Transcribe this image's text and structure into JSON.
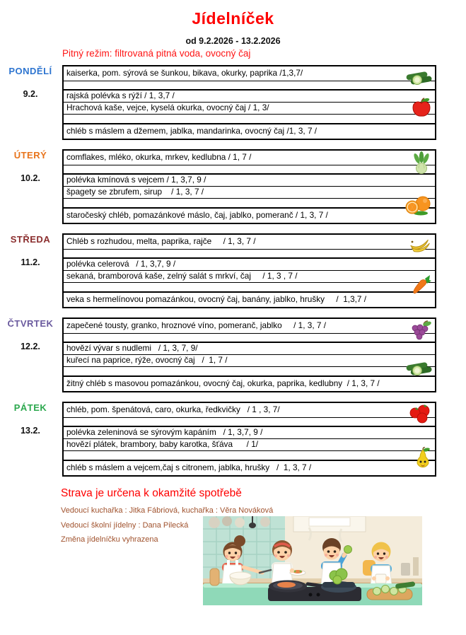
{
  "header": {
    "title": "Jídelníček",
    "date_range": "od 9.2.2026 - 13.2.2026",
    "drink_note": "Pitný režim: filtrovaná pitná voda, ovocný čaj"
  },
  "days": [
    {
      "label": "PONDĚLÍ",
      "date": "9.2.",
      "color": "#2e75d0",
      "rows": [
        "kaiserka, pom. sýrová se šunkou, bikava, okurky, paprika /1,3,7/",
        "",
        "rajská polévka s rýží / 1, 3,7 /",
        "Hrachová kaše, vejce, kyselá okurka, ovocný čaj / 1, 3/",
        "",
        "chléb s máslem a džemem, jablka, mandarinka, ovocný čaj /1, 3, 7 /"
      ],
      "icons": [
        {
          "name": "cucumber",
          "slot": "top"
        },
        {
          "name": "apple",
          "slot": "middle"
        }
      ]
    },
    {
      "label": "ÚTERÝ",
      "date": "10.2.",
      "color": "#e8731a",
      "rows": [
        "comflakes, mléko, okurka, mrkev, kedlubna / 1, 7 /",
        "",
        "polévka kmínová s vejcem / 1, 3,7, 9 /",
        "špagety se zbrufem, sirup    / 1, 3, 7 /",
        "",
        "staročeský chléb, pomazánkové máslo, čaj, jablko, pomeranč / 1, 3, 7 /"
      ],
      "icons": [
        {
          "name": "kohlrabi",
          "slot": "top"
        },
        {
          "name": "orange",
          "slot": "bottom"
        }
      ]
    },
    {
      "label": "STŘEDA",
      "date": "11.2.",
      "color": "#8b2e2e",
      "rows": [
        "Chléb s rozhudou, melta, paprika, rajče     / 1, 3, 7 /",
        "",
        "polévka celerová   / 1, 3,7, 9 /",
        "sekaná, bramborová kaše, zelný salát s mrkví, čaj     / 1, 3 , 7 /",
        "",
        "veka s hermelínovou pomazánkou, ovocný čaj, banány, jablko, hrušky     /  1,3,7 /"
      ],
      "icons": [
        {
          "name": "banana",
          "slot": "top"
        },
        {
          "name": "carrot",
          "slot": "lower"
        }
      ]
    },
    {
      "label": "ČTVRTEK",
      "date": "12.2.",
      "color": "#6a5a9e",
      "rows": [
        "zapečené tousty, granko, hroznové víno, pomeranč, jablko     / 1, 3, 7 /",
        "",
        "hovězí vývar s nudlemi   / 1, 3, 7, 9/",
        "kuřecí na paprice, rýže, ovocný čaj   /  1, 7 /",
        "",
        "žitný chléb s masovou pomazánkou, ovocný čaj, okurka, paprika, kedlubny  / 1, 3, 7 /"
      ],
      "icons": [
        {
          "name": "grapes",
          "slot": "top"
        },
        {
          "name": "cucumber",
          "slot": "lower"
        }
      ]
    },
    {
      "label": "PÁTEK",
      "date": "13.2.",
      "color": "#2ca84e",
      "rows": [
        "chléb, pom. špenátová, caro, okurka, ředkvičky   / 1 , 3, 7/",
        "",
        "polévka zeleninová se sýrovým kapáním   / 1, 3,7, 9 /",
        "hovězí plátek, brambory, baby karotka, šťáva      / 1/",
        "",
        "chléb s máslem a vejcem,čaj s citronem, jablka, hrušky   /  1, 3, 7 /"
      ],
      "icons": [
        {
          "name": "tomatoes",
          "slot": "top"
        },
        {
          "name": "pear",
          "slot": "bottom"
        }
      ]
    }
  ],
  "footer": {
    "notice": "Strava je určena k okamžité spotřebě",
    "credits": [
      "Vedoucí kuchařka : Jitka Fábriová, kuchařka : Věra Nováková",
      "Vedoucí školní jídelny : Dana Pilecká",
      "Změna jídelníčku vyhrazena"
    ],
    "illustration_description": "Cartoon children cooking together in a kitchen"
  }
}
